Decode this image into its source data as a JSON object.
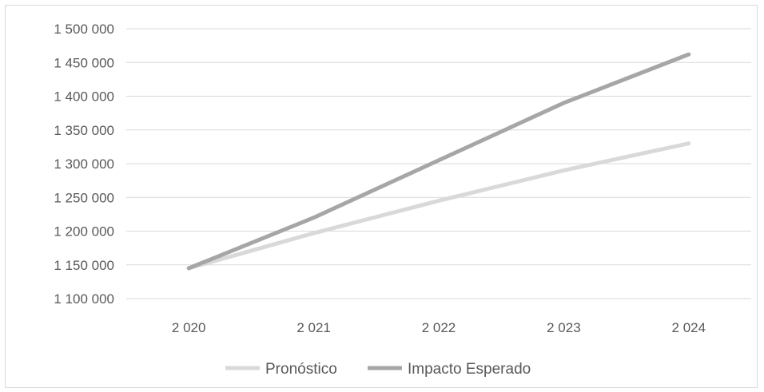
{
  "chart_data": {
    "type": "line",
    "categories": [
      "2 020",
      "2 021",
      "2 022",
      "2 023",
      "2 024"
    ],
    "y_ticks": [
      "1 100 000",
      "1 150 000",
      "1 200 000",
      "1 250 000",
      "1 300 000",
      "1 350 000",
      "1 400 000",
      "1 450 000",
      "1 500 000"
    ],
    "ylim": [
      1100000,
      1500000
    ],
    "grid": true,
    "legend_position": "bottom",
    "series": [
      {
        "name": "Pronóstico",
        "color": "#d9d9d9",
        "values": [
          1145000,
          1197000,
          1245000,
          1290000,
          1330000
        ]
      },
      {
        "name": "Impacto Esperado",
        "color": "#a6a6a6",
        "values": [
          1145000,
          1220000,
          1305000,
          1390000,
          1462000
        ]
      }
    ]
  }
}
